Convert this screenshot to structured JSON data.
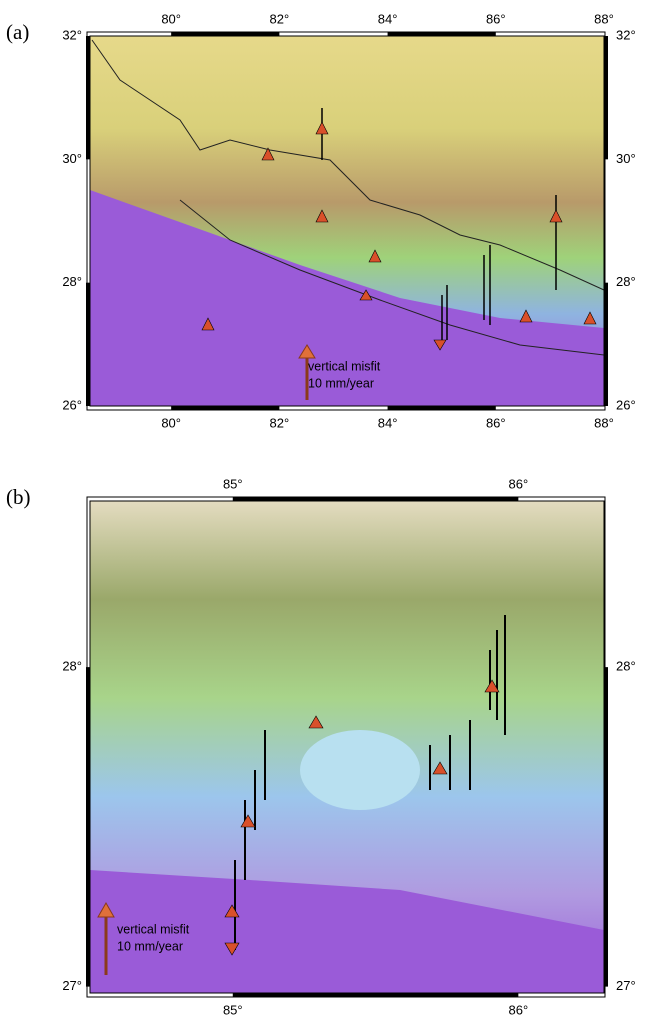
{
  "panels": [
    {
      "label": "(a)",
      "xlim": [
        78.5,
        88
      ],
      "ylim": [
        26,
        32
      ],
      "xticks": [
        {
          "value": 80,
          "label": "80°"
        },
        {
          "value": 82,
          "label": "82°"
        },
        {
          "value": 84,
          "label": "84°"
        },
        {
          "value": 86,
          "label": "86°"
        },
        {
          "value": 88,
          "label": "88°"
        }
      ],
      "yticks": [
        {
          "value": 26,
          "label": "26°"
        },
        {
          "value": 28,
          "label": "28°"
        },
        {
          "value": 30,
          "label": "30°"
        },
        {
          "value": 32,
          "label": "32°"
        }
      ],
      "legend": [
        "vertical misfit",
        "10 mm/year"
      ]
    },
    {
      "label": "(b)",
      "xlim": [
        84.5,
        86.3
      ],
      "ylim": [
        26.98,
        28.52
      ],
      "xticks": [
        {
          "value": 85,
          "label": "85°"
        },
        {
          "value": 86,
          "label": "86°"
        }
      ],
      "yticks": [
        {
          "value": 27,
          "label": "27°"
        },
        {
          "value": 28,
          "label": "28°"
        }
      ],
      "legend": [
        "vertical misfit",
        "10 mm/year"
      ]
    }
  ]
}
